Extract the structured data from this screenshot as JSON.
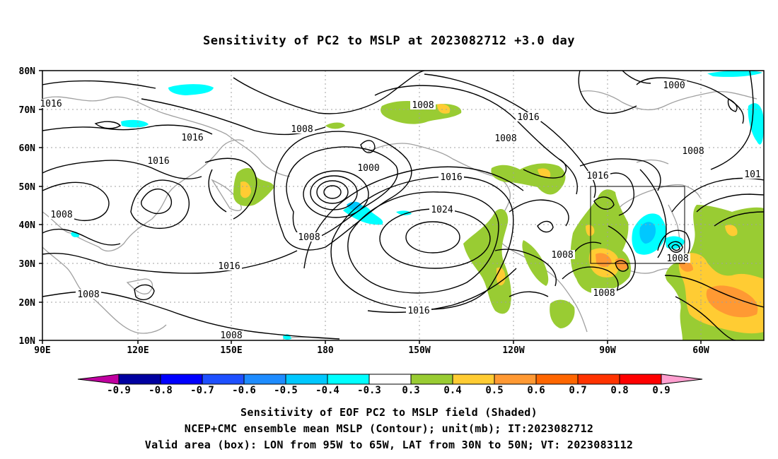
{
  "title": "Sensitivity of PC2 to MSLP at 2023082712 +3.0 day",
  "map": {
    "lat_ticks": [
      "80N",
      "70N",
      "60N",
      "50N",
      "40N",
      "30N",
      "20N",
      "10N"
    ],
    "lon_ticks": [
      "90E",
      "120E",
      "150E",
      "180",
      "150W",
      "120W",
      "90W",
      "60W"
    ],
    "contour_labels": [
      {
        "text": "1016",
        "id": "a"
      },
      {
        "text": "1016",
        "id": "b"
      },
      {
        "text": "1016",
        "id": "c"
      },
      {
        "text": "1008",
        "id": "d"
      },
      {
        "text": "1008",
        "id": "e"
      },
      {
        "text": "1016",
        "id": "f"
      },
      {
        "text": "1008",
        "id": "g"
      },
      {
        "text": "1008",
        "id": "h"
      },
      {
        "text": "1008",
        "id": "i"
      },
      {
        "text": "1000",
        "id": "j"
      },
      {
        "text": "1008",
        "id": "k"
      },
      {
        "text": "1016",
        "id": "l"
      },
      {
        "text": "1024",
        "id": "m"
      },
      {
        "text": "1016",
        "id": "n"
      },
      {
        "text": "1008",
        "id": "o"
      },
      {
        "text": "1008",
        "id": "p"
      },
      {
        "text": "1016",
        "id": "q"
      },
      {
        "text": "1000",
        "id": "r"
      },
      {
        "text": "1016",
        "id": "s"
      },
      {
        "text": "1008",
        "id": "t"
      },
      {
        "text": "1008",
        "id": "u"
      },
      {
        "text": "1016",
        "id": "v"
      },
      {
        "text": "1008",
        "id": "w"
      },
      {
        "text": "101",
        "id": "x"
      }
    ],
    "box": {
      "lon_from": "95W",
      "lon_to": "65W",
      "lat_from": "30N",
      "lat_to": "50N"
    }
  },
  "colorbar": {
    "labels": [
      "-0.9",
      "-0.8",
      "-0.7",
      "-0.6",
      "-0.5",
      "-0.4",
      "-0.3",
      "0.3",
      "0.4",
      "0.5",
      "0.6",
      "0.7",
      "0.8",
      "0.9"
    ],
    "colors": [
      "#0000a0",
      "#0000ff",
      "#1e50ff",
      "#1e8cff",
      "#00c8ff",
      "#00ffff",
      "#ffffff",
      "#99cc33",
      "#ffcc33",
      "#ff9933",
      "#ff6600",
      "#ff3300",
      "#ff0000"
    ],
    "end_low_color": "#c000a0",
    "end_high_color": "#ff9fd0"
  },
  "caption": {
    "line1": "Sensitivity of EOF PC2 to MSLP field (Shaded)",
    "line2": "NCEP+CMC ensemble mean MSLP (Contour); unit(mb); IT:2023082712",
    "line3": "Valid area (box): LON from 95W to 65W, LAT from 30N to 50N; VT: 2023083112"
  }
}
